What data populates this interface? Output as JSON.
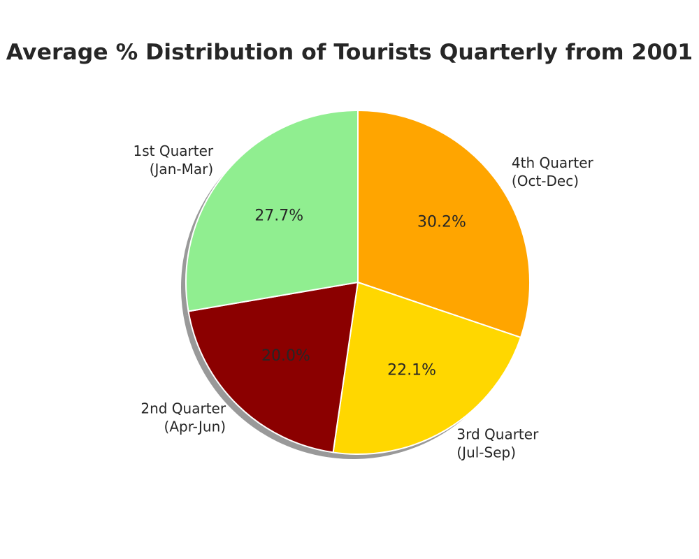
{
  "chart_data": {
    "type": "pie",
    "title": "Average % Distribution of Tourists Quarterly from 2001",
    "slices": [
      {
        "label_line1": "4th Quarter",
        "label_line2": "(Oct-Dec)",
        "value": 30.2,
        "pct_text": "30.2%",
        "color": "#FFA500"
      },
      {
        "label_line1": "3rd Quarter",
        "label_line2": "(Jul-Sep)",
        "value": 22.1,
        "pct_text": "22.1%",
        "color": "#FFD700"
      },
      {
        "label_line1": "2nd Quarter",
        "label_line2": "(Apr-Jun)",
        "value": 20.0,
        "pct_text": "20.0%",
        "color": "#8B0000"
      },
      {
        "label_line1": "1st Quarter",
        "label_line2": "(Jan-Mar)",
        "value": 27.7,
        "pct_text": "27.7%",
        "color": "#90EE90"
      }
    ],
    "start_angle": "top",
    "direction": "clockwise",
    "shadow": true,
    "legend": "none"
  }
}
